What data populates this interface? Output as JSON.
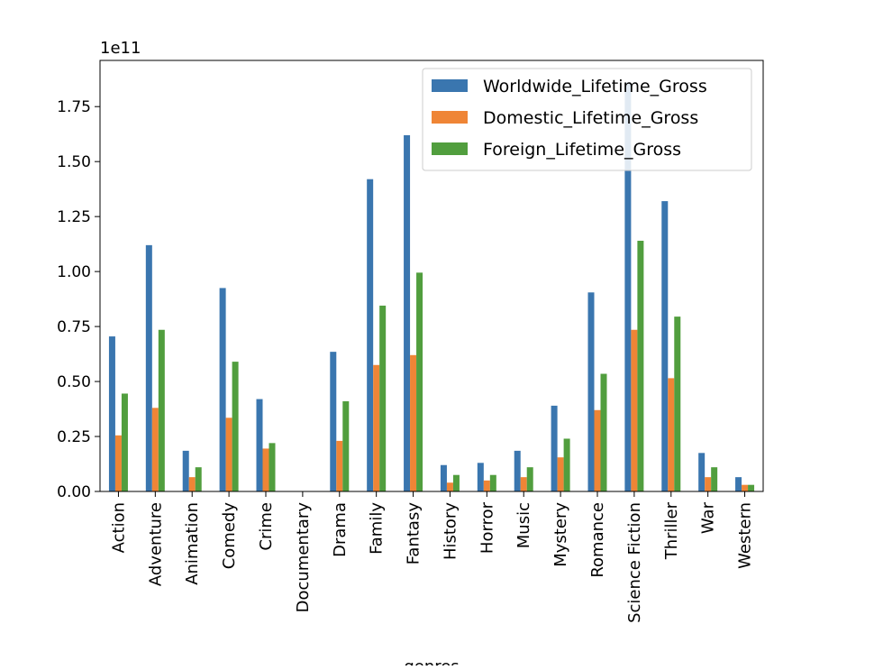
{
  "chart_data": {
    "type": "bar",
    "scale_label": "1e11",
    "xlabel": "genres",
    "categories": [
      "Action",
      "Adventure",
      "Animation",
      "Comedy",
      "Crime",
      "Documentary",
      "Drama",
      "Family",
      "Fantasy",
      "History",
      "Horror",
      "Music",
      "Mystery",
      "Romance",
      "Science Fiction",
      "Thriller",
      "War",
      "Western"
    ],
    "series": [
      {
        "name": "Worldwide_Lifetime_Gross",
        "color": "#3a76af",
        "values": [
          0.705,
          1.12,
          0.185,
          0.925,
          0.42,
          0.0,
          0.635,
          1.42,
          1.62,
          0.12,
          0.13,
          0.185,
          0.39,
          0.905,
          1.86,
          1.32,
          0.175,
          0.065
        ]
      },
      {
        "name": "Domestic_Lifetime_Gross",
        "color": "#ef8536",
        "values": [
          0.255,
          0.38,
          0.065,
          0.335,
          0.195,
          0.0,
          0.23,
          0.575,
          0.62,
          0.04,
          0.05,
          0.065,
          0.155,
          0.37,
          0.735,
          0.515,
          0.065,
          0.03
        ]
      },
      {
        "name": "Foreign_Lifetime_Gross",
        "color": "#519e3e",
        "values": [
          0.445,
          0.735,
          0.11,
          0.59,
          0.22,
          0.0,
          0.41,
          0.845,
          0.995,
          0.075,
          0.075,
          0.11,
          0.24,
          0.535,
          1.14,
          0.795,
          0.11,
          0.03
        ]
      }
    ],
    "yticks": [
      "0.00",
      "0.25",
      "0.50",
      "0.75",
      "1.00",
      "1.25",
      "1.50",
      "1.75"
    ],
    "ylim": [
      0,
      1.96
    ],
    "legend_position": "upper-right",
    "grid": false
  }
}
